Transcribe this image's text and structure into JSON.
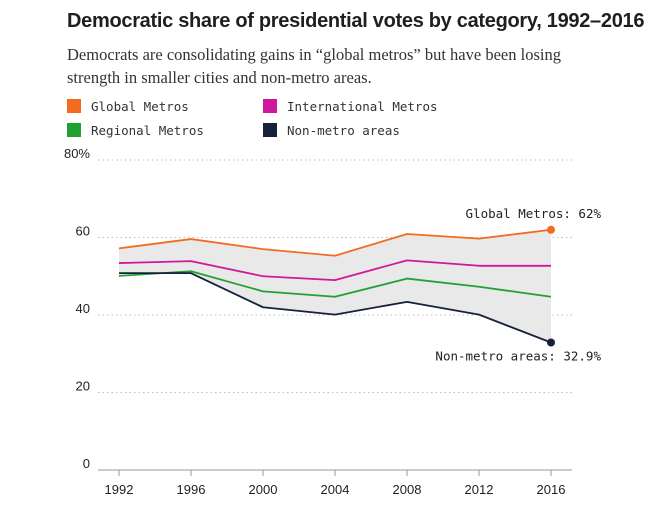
{
  "header": {
    "title": "Democratic share of presidential votes by category, 1992–2016",
    "subtitle": "Democrats are consolidating gains in “global metros” but have been losing strength in smaller cities and non-metro areas."
  },
  "chart_data": {
    "type": "line",
    "title": "Democratic share of presidential votes by category, 1992–2016",
    "subtitle": "Democrats are consolidating gains in “global metros” but have been losing strength in smaller cities and non-metro areas.",
    "xlabel": "",
    "ylabel": "",
    "x": [
      1992,
      1996,
      2000,
      2004,
      2008,
      2012,
      2016
    ],
    "ylim": [
      0,
      80
    ],
    "yticks": [
      0,
      20,
      40,
      60,
      80
    ],
    "ytick_labels": [
      "0",
      "20",
      "40",
      "60",
      "80%"
    ],
    "grid": "horizontal dotted",
    "legend_position": "top-left",
    "shaded_band": "between Global Metros and Non-metro areas",
    "series": [
      {
        "name": "Global Metros",
        "color": "#f26b21",
        "values": [
          57.2,
          59.6,
          57.0,
          55.3,
          60.9,
          59.7,
          62.0
        ]
      },
      {
        "name": "International Metros",
        "color": "#d1179c",
        "values": [
          53.4,
          53.9,
          50.0,
          49.0,
          54.1,
          52.7,
          52.7
        ]
      },
      {
        "name": "Regional Metros",
        "color": "#21a132",
        "values": [
          50.1,
          51.3,
          46.1,
          44.7,
          49.4,
          47.3,
          44.7
        ]
      },
      {
        "name": "Non-metro areas",
        "color": "#16213b",
        "values": [
          50.8,
          50.8,
          42.0,
          40.1,
          43.4,
          40.1,
          32.9
        ]
      }
    ],
    "annotations": [
      {
        "series": "Global Metros",
        "text": "Global Metros: 62%"
      },
      {
        "series": "Non-metro areas",
        "text": "Non-metro areas: 32.9%"
      }
    ]
  }
}
